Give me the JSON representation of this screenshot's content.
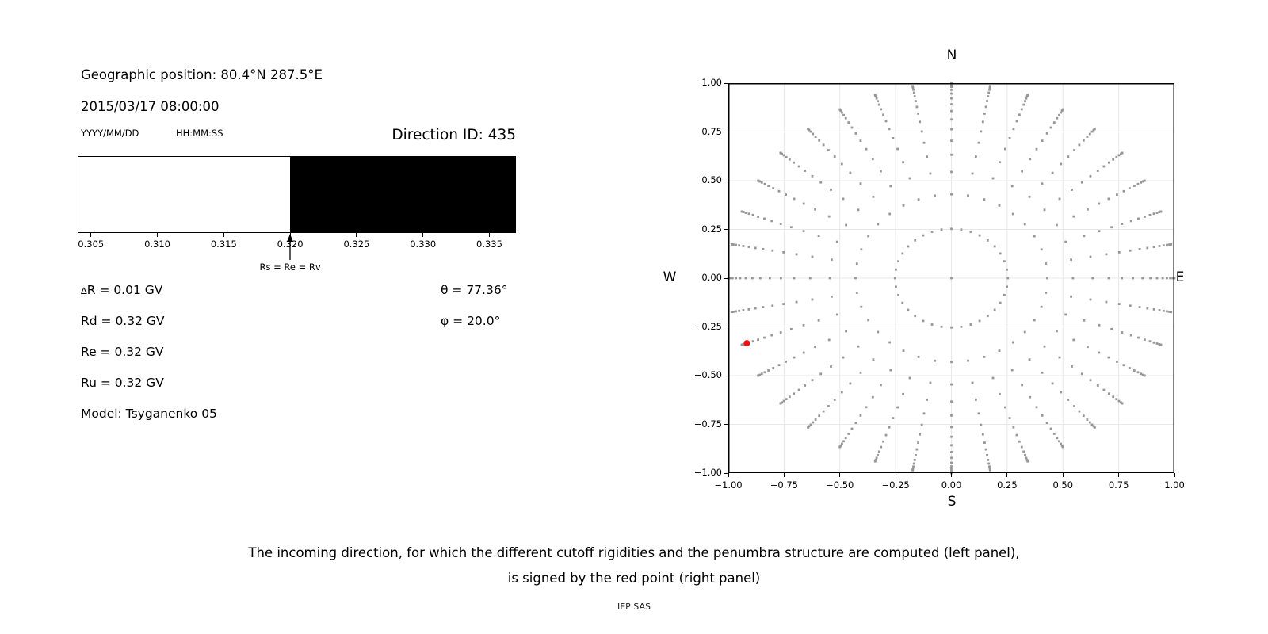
{
  "left_panel": {
    "geo_position": "Geographic position: 80.4°N 287.5°E",
    "datetime": "2015/03/17 08:00:00",
    "date_format_label": "YYYY/MM/DD",
    "time_format_label": "HH:MM:SS",
    "direction_id": "Direction ID: 435",
    "delta_symbol": "∆",
    "delta_rest": "R = 0.01 GV",
    "rd": "Rd = 0.32 GV",
    "re": "Re = 0.32 GV",
    "ru": "Ru = 0.32 GV",
    "model": "Model: Tsyganenko 05",
    "theta": "θ = 77.36°",
    "phi": "φ = 20.0°"
  },
  "chart_data": [
    {
      "type": "area",
      "name": "penumbra-structure",
      "xlim": [
        0.304,
        0.337
      ],
      "tick_values": [
        0.305,
        0.31,
        0.315,
        0.32,
        0.325,
        0.33,
        0.335
      ],
      "tick_labels": [
        "0.305",
        "0.310",
        "0.315",
        "0.320",
        "0.325",
        "0.330",
        "0.335"
      ],
      "allowed_range": [
        0.304,
        0.32
      ],
      "forbidden_range": [
        0.32,
        0.337
      ],
      "allowed_color": "#ffffff",
      "forbidden_color": "#000000",
      "annotation": {
        "label": "Rs = Re = Rv",
        "x": 0.32
      }
    },
    {
      "type": "scatter",
      "name": "incoming-directions",
      "labels": {
        "top": "N",
        "bottom": "S",
        "left": "W",
        "right": "E"
      },
      "xlim": [
        -1.0,
        1.0
      ],
      "ylim": [
        -1.0,
        1.0
      ],
      "xtick_values": [
        -1.0,
        -0.75,
        -0.5,
        -0.25,
        0.0,
        0.25,
        0.5,
        0.75,
        1.0
      ],
      "xtick_labels": [
        "−1.00",
        "−0.75",
        "−0.50",
        "−0.25",
        "0.00",
        "0.25",
        "0.50",
        "0.75",
        "1.00"
      ],
      "ytick_values": [
        1.0,
        0.75,
        0.5,
        0.25,
        0.0,
        -0.25,
        -0.5,
        -0.75,
        -1.0
      ],
      "ytick_labels": [
        "1.00",
        "0.75",
        "0.50",
        "0.25",
        "0.00",
        "−0.25",
        "−0.50",
        "−0.75",
        "−1.00"
      ],
      "grid": true,
      "grid_color": "#e8e8e8",
      "dot_color": "#979797",
      "spokes": {
        "count": 36,
        "start_deg": 0,
        "step_deg": 10,
        "radii": [
          0.253,
          0.43,
          0.545,
          0.633,
          0.705,
          0.764,
          0.814,
          0.857,
          0.892,
          0.922,
          0.947,
          0.966,
          0.981,
          0.992,
          0.998,
          1.0
        ]
      },
      "center_point": {
        "x": 0.0,
        "y": 0.0
      },
      "red_point": {
        "x": -0.9169,
        "y": -0.3337,
        "theta_deg": 77.36,
        "phi_deg": 20.0,
        "color": "#ec1212"
      }
    }
  ],
  "caption": {
    "line1": "The incoming direction, for which the different cutoff rigidities and the penumbra structure are computed (left panel),",
    "line2": "is signed by the red point (right panel)",
    "credit": "IEP SAS"
  }
}
